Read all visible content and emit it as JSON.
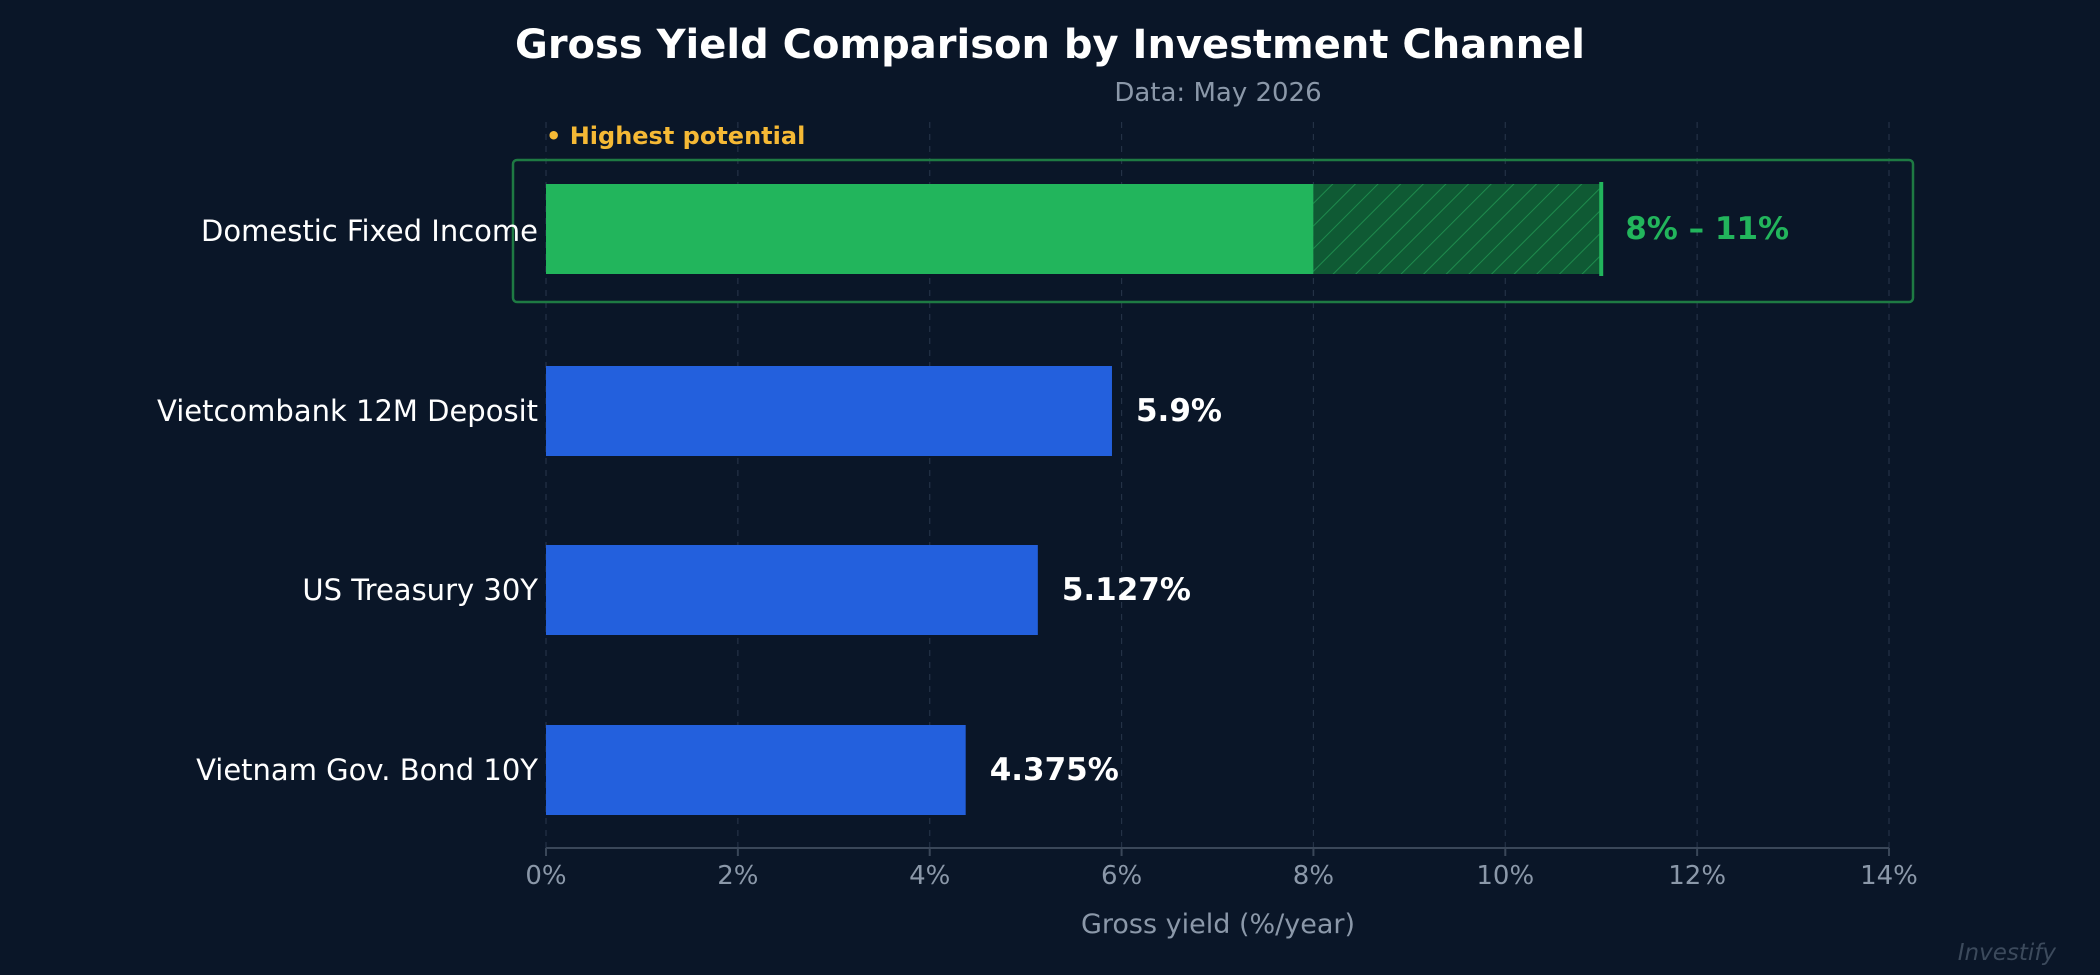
{
  "chart_data": {
    "type": "bar",
    "orientation": "horizontal",
    "title": "Gross Yield Comparison by Investment Channel",
    "subtitle": "Data: May 2026",
    "xlabel": "Gross yield (%/year)",
    "ylabel": "",
    "xlim": [
      0,
      14
    ],
    "xticks": [
      0,
      2,
      4,
      6,
      8,
      10,
      12,
      14
    ],
    "tick_suffix": "%",
    "grid": "vertical-dashed",
    "categories": [
      "Domestic Fixed Income",
      "Vietcombank 12M Deposit",
      "US Treasury 30Y",
      "Vietnam Gov. Bond 10Y"
    ],
    "bars": [
      {
        "category": "Domestic Fixed Income",
        "value": 8,
        "range_max": 11,
        "label": "8% – 11%",
        "color": "#22b55c",
        "highlighted": true
      },
      {
        "category": "Vietcombank 12M Deposit",
        "value": 5.9,
        "label": "5.9%",
        "color": "#2360dd"
      },
      {
        "category": "US Treasury 30Y",
        "value": 5.127,
        "label": "5.127%",
        "color": "#2360dd"
      },
      {
        "category": "Vietnam Gov. Bond 10Y",
        "value": 4.375,
        "label": "4.375%",
        "color": "#2360dd"
      }
    ],
    "highlight_badge": "• Highest potential",
    "highlight_color": "#f5b935",
    "highlight_range_color": "#22b55c"
  },
  "watermark": "Investify"
}
